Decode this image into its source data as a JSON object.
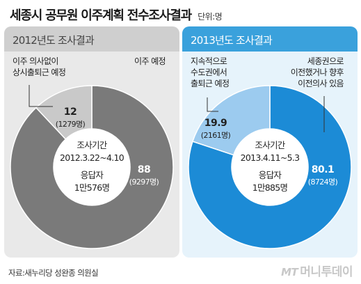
{
  "header": {
    "title": "세종시 공무원 이주계획 전수조사결과",
    "unit": "단위:명"
  },
  "chart_data": [
    {
      "type": "pie",
      "title": "2012년도 조사결과",
      "center": [
        "조사기간",
        "2012.3.22~4.10",
        "응답자",
        "1만576명"
      ],
      "slices": [
        {
          "label": [
            "이주 예정"
          ],
          "value": 88,
          "value_label": "88",
          "count_label": "(9297명)",
          "color": "#7a7a7a"
        },
        {
          "label": [
            "이주 의사없이",
            "상시출퇴근 예정"
          ],
          "value": 12,
          "value_label": "12",
          "count_label": "(1279명)",
          "color": "#c9c9c9"
        }
      ]
    },
    {
      "type": "pie",
      "title": "2013년도 조사결과",
      "center": [
        "조사기간",
        "2013.4.11~5.3",
        "응답자",
        "1만885명"
      ],
      "slices": [
        {
          "label": [
            "세종권으로",
            "이전했거나 향후",
            "이전의사 있음"
          ],
          "value": 80.1,
          "value_label": "80.1",
          "count_label": "(8724명)",
          "color": "#1c8bd6"
        },
        {
          "label": [
            "지속적으로",
            "수도권에서",
            "출퇴근 예정"
          ],
          "value": 19.9,
          "value_label": "19.9",
          "count_label": "(2161명)",
          "color": "#9ccbef"
        }
      ]
    }
  ],
  "footer": {
    "source": "자료:새누리당 성완종 의원실",
    "logo_mt": "MT",
    "logo_text": "머니투데이"
  }
}
